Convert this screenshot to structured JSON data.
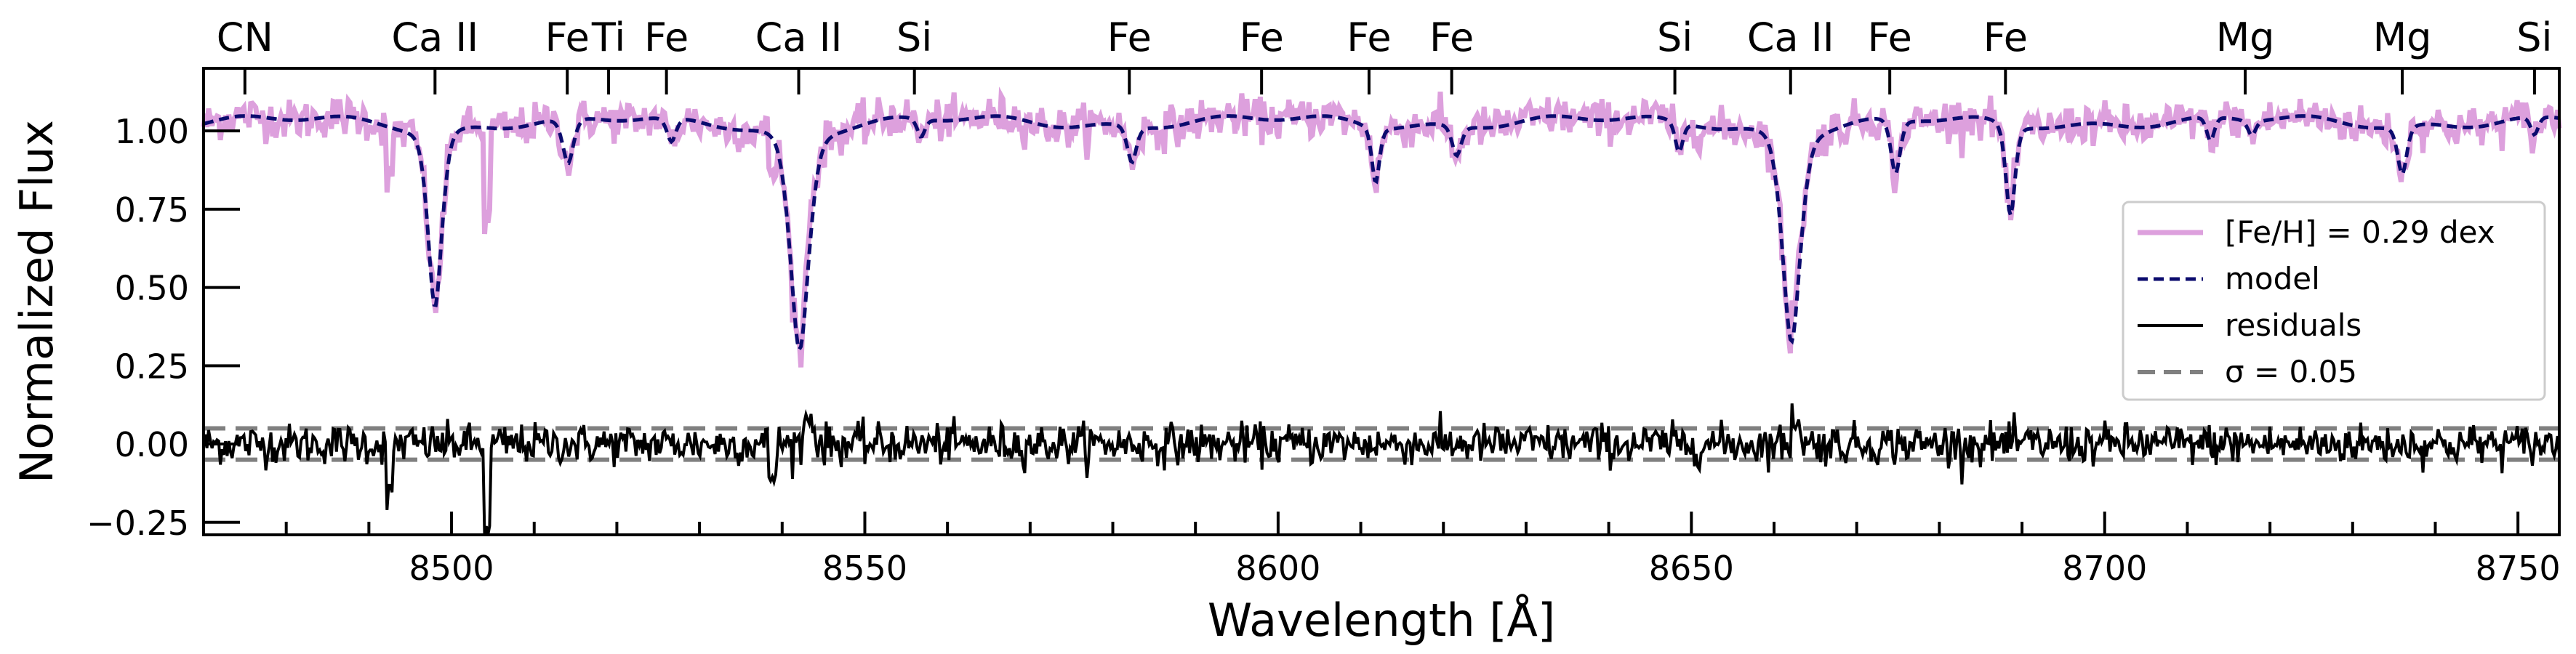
{
  "chart_data": {
    "type": "line",
    "xlabel": "Wavelength [Å]",
    "ylabel": "Normalized Flux",
    "xlim": [
      8470,
      8755
    ],
    "ylim": [
      -0.29,
      1.2
    ],
    "xticks": [
      8500,
      8550,
      8600,
      8650,
      8700,
      8750
    ],
    "xtick_labels": [
      "8500",
      "8550",
      "8600",
      "8650",
      "8700",
      "8750"
    ],
    "yticks": [
      -0.25,
      0.0,
      0.25,
      0.5,
      0.75,
      1.0
    ],
    "ytick_labels": [
      "−0.25",
      "0.00",
      "0.25",
      "0.50",
      "0.75",
      "1.00"
    ],
    "line_markers": [
      {
        "label": "CN",
        "x": 8475
      },
      {
        "label": "Ca II",
        "x": 8498
      },
      {
        "label": "Fe",
        "x": 8514
      },
      {
        "label": "Ti",
        "x": 8519
      },
      {
        "label": "Fe",
        "x": 8526
      },
      {
        "label": "Ca II",
        "x": 8542
      },
      {
        "label": "Si",
        "x": 8556
      },
      {
        "label": "Fe",
        "x": 8582
      },
      {
        "label": "Fe",
        "x": 8598
      },
      {
        "label": "Fe",
        "x": 8611
      },
      {
        "label": "Fe",
        "x": 8621
      },
      {
        "label": "Si",
        "x": 8648
      },
      {
        "label": "Ca II",
        "x": 8662
      },
      {
        "label": "Fe",
        "x": 8674
      },
      {
        "label": "Fe",
        "x": 8688
      },
      {
        "label": "Mg",
        "x": 8717
      },
      {
        "label": "Mg",
        "x": 8736
      },
      {
        "label": "Si",
        "x": 8752
      }
    ],
    "absorption_lines": [
      {
        "x": 8498.0,
        "depth": 0.58,
        "width": 0.9
      },
      {
        "x": 8542.1,
        "depth": 0.72,
        "width": 1.2
      },
      {
        "x": 8662.1,
        "depth": 0.69,
        "width": 1.15
      },
      {
        "x": 8514.1,
        "depth": 0.15,
        "width": 0.7
      },
      {
        "x": 8526.6,
        "depth": 0.08,
        "width": 0.6
      },
      {
        "x": 8556.8,
        "depth": 0.06,
        "width": 0.5
      },
      {
        "x": 8582.3,
        "depth": 0.12,
        "width": 0.6
      },
      {
        "x": 8611.8,
        "depth": 0.18,
        "width": 0.5
      },
      {
        "x": 8621.6,
        "depth": 0.1,
        "width": 0.6
      },
      {
        "x": 8648.5,
        "depth": 0.1,
        "width": 0.5
      },
      {
        "x": 8674.7,
        "depth": 0.18,
        "width": 0.6
      },
      {
        "x": 8688.6,
        "depth": 0.3,
        "width": 0.6
      },
      {
        "x": 8712.8,
        "depth": 0.08,
        "width": 0.5
      },
      {
        "x": 8717.8,
        "depth": 0.05,
        "width": 0.5
      },
      {
        "x": 8736.0,
        "depth": 0.16,
        "width": 0.6
      },
      {
        "x": 8752.0,
        "depth": 0.06,
        "width": 0.5
      }
    ],
    "continuum": 1.03,
    "series": [
      {
        "name": "[Fe/H] = 0.29 dex",
        "color": "#dda0dd",
        "style": "solid",
        "role": "observed"
      },
      {
        "name": "model",
        "color": "#0b0b6e",
        "style": "dashed",
        "role": "model"
      },
      {
        "name": "residuals",
        "color": "#000000",
        "style": "solid",
        "role": "residuals"
      }
    ],
    "reference_lines": [
      {
        "name": "σ = 0.05",
        "y": [
          0.05,
          -0.05
        ],
        "color": "#808080",
        "style": "dashed"
      }
    ],
    "legend_placement": "center-right",
    "grid": false
  }
}
